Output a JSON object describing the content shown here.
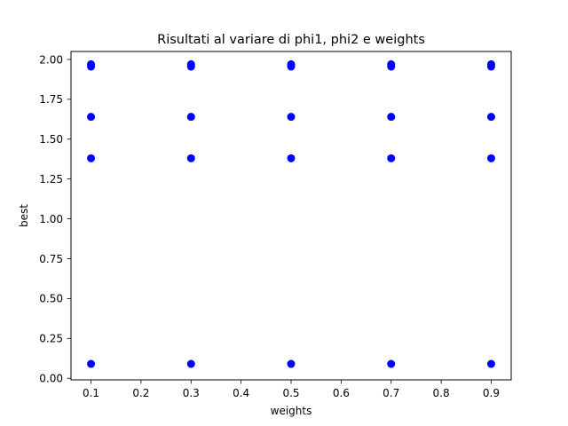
{
  "chart_data": {
    "type": "scatter",
    "title": "Risultati al variare di phi1, phi2 e weights",
    "xlabel": "weights",
    "ylabel": "best",
    "xlim": [
      0.06,
      0.94
    ],
    "ylim": [
      -0.01,
      2.05
    ],
    "xticks": [
      "0.1",
      "0.2",
      "0.3",
      "0.4",
      "0.5",
      "0.6",
      "0.7",
      "0.8",
      "0.9"
    ],
    "yticks": [
      "0.00",
      "0.25",
      "0.50",
      "0.75",
      "1.00",
      "1.25",
      "1.50",
      "1.75",
      "2.00"
    ],
    "grid": false,
    "color": "#0000ff",
    "series": [
      {
        "points": [
          [
            0.1,
            1.97
          ],
          [
            0.1,
            1.955
          ],
          [
            0.1,
            1.64
          ],
          [
            0.1,
            1.38
          ],
          [
            0.1,
            0.09
          ],
          [
            0.3,
            1.97
          ],
          [
            0.3,
            1.955
          ],
          [
            0.3,
            1.64
          ],
          [
            0.3,
            1.38
          ],
          [
            0.3,
            0.09
          ],
          [
            0.5,
            1.97
          ],
          [
            0.5,
            1.955
          ],
          [
            0.5,
            1.64
          ],
          [
            0.5,
            1.38
          ],
          [
            0.5,
            0.09
          ],
          [
            0.7,
            1.97
          ],
          [
            0.7,
            1.955
          ],
          [
            0.7,
            1.64
          ],
          [
            0.7,
            1.38
          ],
          [
            0.7,
            0.09
          ],
          [
            0.9,
            1.97
          ],
          [
            0.9,
            1.955
          ],
          [
            0.9,
            1.64
          ],
          [
            0.9,
            1.38
          ],
          [
            0.9,
            0.09
          ]
        ]
      }
    ]
  }
}
